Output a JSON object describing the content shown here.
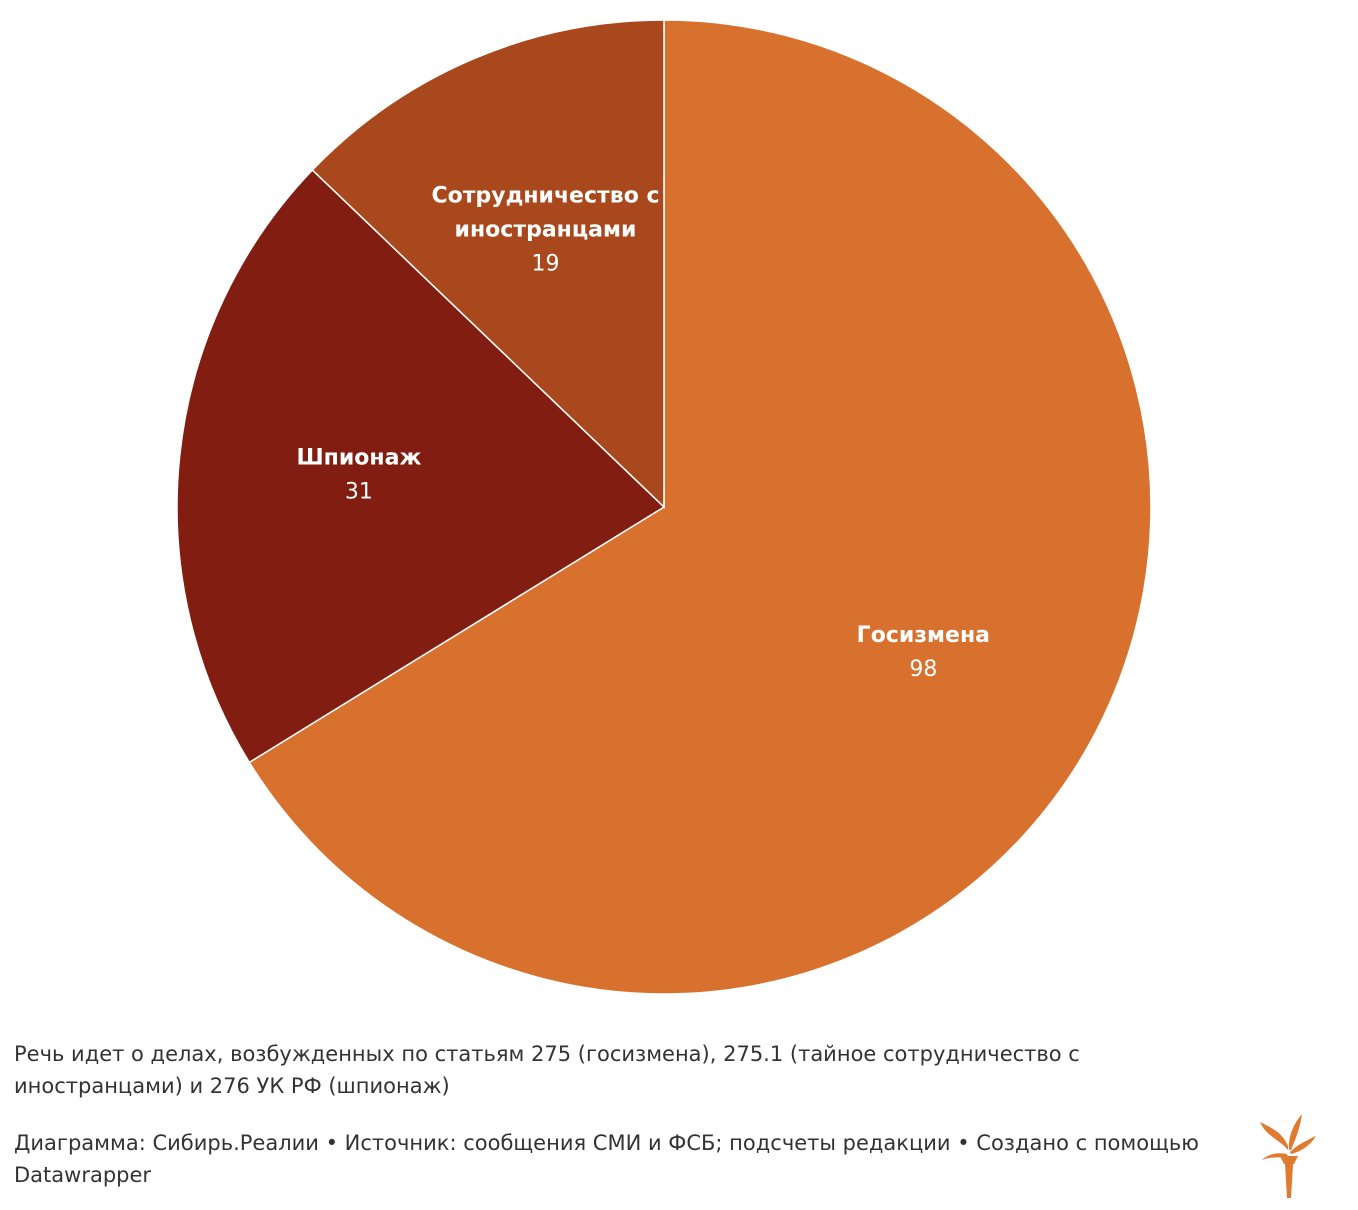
{
  "colors": {
    "gosizmena": "#d8702e",
    "shpionazh": "#821e11",
    "sotrudnichestvo": "#a9481d",
    "text": "#333333",
    "logo": "#e07a2f"
  },
  "chart_data": {
    "type": "pie",
    "slices": [
      {
        "label": "Госизмена",
        "value": 98,
        "color": "#d8702e"
      },
      {
        "label": "Шпионаж",
        "value": 31,
        "color": "#821e11"
      },
      {
        "label": "Сотрудничество с иностранцами",
        "label_lines": [
          "Сотрудничество с",
          "иностранцами"
        ],
        "value": 19,
        "color": "#a9481d"
      }
    ]
  },
  "footer": {
    "notes": "Речь идет о делах, возбужденных по статьям 275 (госизмена), 275.1 (тайное сотрудничество с иностранцами) и 276 УК РФ (шпионаж)",
    "byline": "Диаграмма: Сибирь.Реалии • Источник: сообщения СМИ и ФСБ; подсчеты редакции • Создано с помощью Datawrapper"
  },
  "logo": {
    "icon": "torch-logo-icon"
  }
}
